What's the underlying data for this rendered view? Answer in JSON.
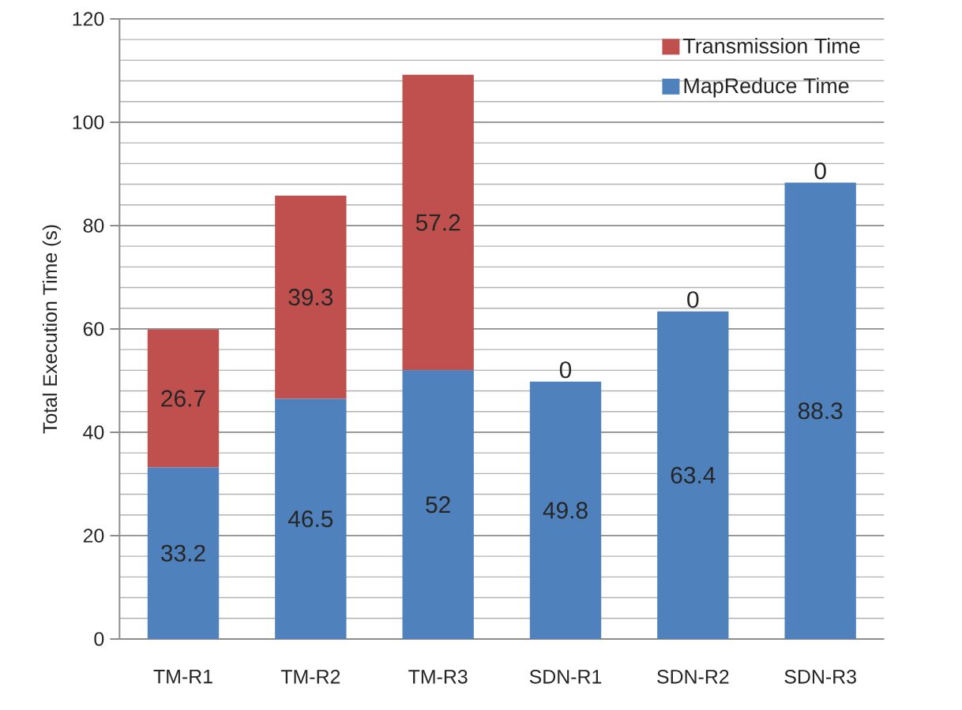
{
  "chart_data": {
    "type": "bar",
    "stacked": true,
    "ylabel": "Total Execution Time (s)",
    "categories": [
      "TM-R1",
      "TM-R2",
      "TM-R3",
      "SDN-R1",
      "SDN-R2",
      "SDN-R3"
    ],
    "series": [
      {
        "name": "MapReduce Time",
        "color": "#4f81bd",
        "values": [
          33.2,
          46.5,
          52,
          49.8,
          63.4,
          88.3
        ]
      },
      {
        "name": "Transmission Time",
        "color": "#c0504d",
        "values": [
          26.7,
          39.3,
          57.2,
          0,
          0,
          0
        ]
      }
    ],
    "ylim": [
      0,
      120
    ],
    "yticks": [
      0,
      20,
      40,
      60,
      80,
      100,
      120
    ],
    "grid": "y",
    "legend": "top right",
    "data_labels": true
  }
}
